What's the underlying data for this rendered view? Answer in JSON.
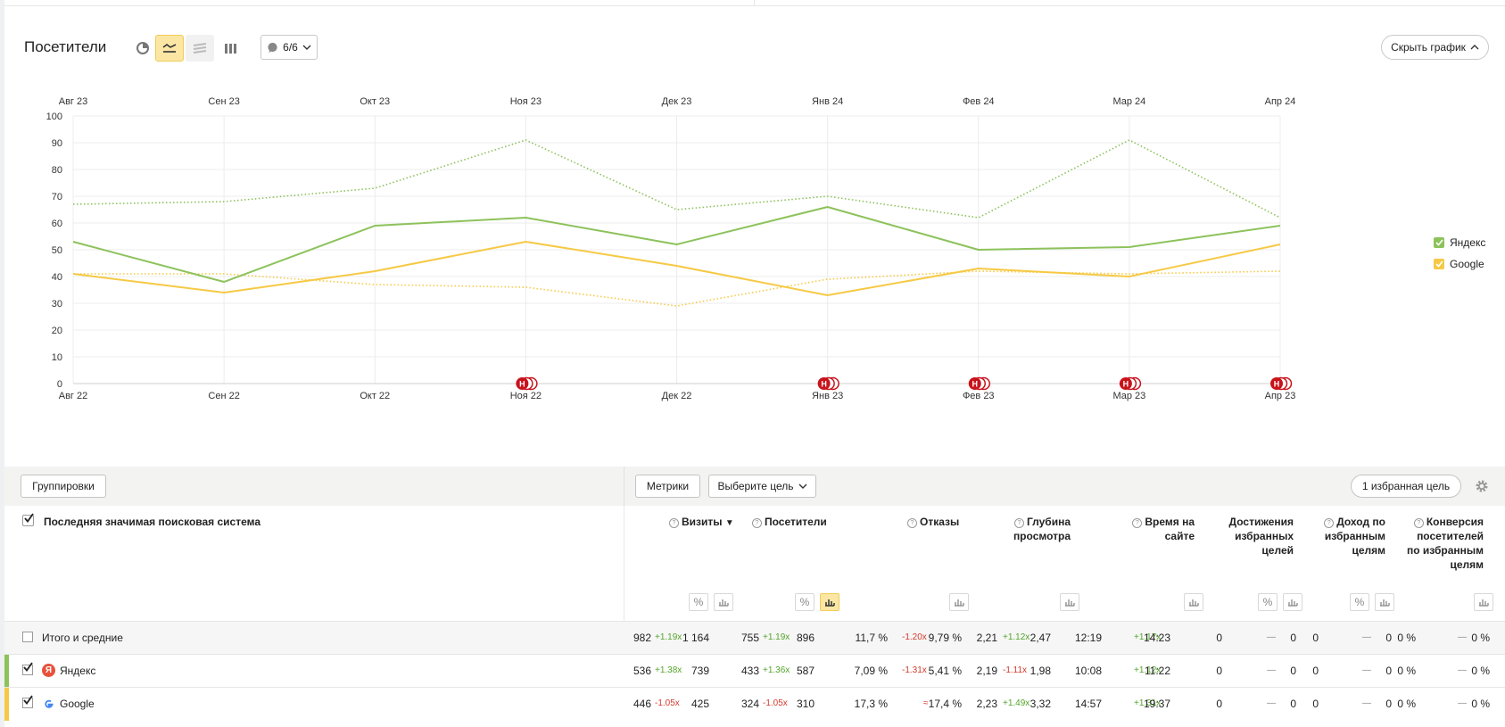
{
  "header": {
    "title": "Посетители",
    "annotations_label": "6/6",
    "hide_chart_label": "Скрыть график"
  },
  "colors": {
    "yandex": "#8dc25b",
    "google": "#f6c945",
    "accent": "#fbe6a4",
    "annotation": "#c8131b"
  },
  "chart_data": {
    "type": "line",
    "x_top": [
      "Авг 23",
      "Сен 23",
      "Окт 23",
      "Ноя 23",
      "Дек 23",
      "Янв 24",
      "Фев 24",
      "Мар 24",
      "Апр 24"
    ],
    "x": [
      "Авг 22",
      "Сен 22",
      "Окт 22",
      "Ноя 22",
      "Дек 22",
      "Янв 23",
      "Фев 23",
      "Мар 23",
      "Апр 23"
    ],
    "yticks": [
      0,
      10,
      20,
      30,
      40,
      50,
      60,
      70,
      80,
      90,
      100
    ],
    "ylim": [
      0,
      100
    ],
    "series": [
      {
        "name": "Яндекс",
        "style": "solid",
        "color": "#8dc25b",
        "values": [
          53,
          38,
          59,
          62,
          52,
          66,
          50,
          51,
          59
        ]
      },
      {
        "name": "Google",
        "style": "solid",
        "color": "#f6c945",
        "values": [
          41,
          34,
          42,
          53,
          44,
          33,
          43,
          40,
          52
        ]
      },
      {
        "name": "Яндекс",
        "style": "dotted",
        "color": "#8dc25b",
        "values": [
          67,
          68,
          73,
          91,
          65,
          70,
          62,
          91,
          62
        ]
      },
      {
        "name": "Google",
        "style": "dotted",
        "color": "#f6c945",
        "values": [
          41,
          41,
          37,
          36,
          29,
          39,
          42,
          41,
          42
        ]
      }
    ],
    "annotations": [
      {
        "x_index": 3,
        "label": "Н"
      },
      {
        "x_index": 5,
        "label": "Н"
      },
      {
        "x_index": 6,
        "label": "Н"
      },
      {
        "x_index": 7,
        "label": "Н"
      },
      {
        "x_index": 8,
        "label": "Н"
      }
    ],
    "legend": [
      "Яндекс",
      "Google"
    ],
    "legend_position": "right",
    "grid": true
  },
  "toolbar": {
    "groupings_label": "Группировки",
    "metrics_label": "Метрики",
    "goal_select_label": "Выберите цель",
    "favorite_goal_label": "1 избранная цель"
  },
  "table": {
    "dimension_header": "Последняя значимая поисковая система",
    "columns": [
      {
        "key": "visits",
        "label": "Визиты",
        "sort": "▼"
      },
      {
        "key": "visitors",
        "label": "Посетители"
      },
      {
        "key": "bounce",
        "label": "Отказы"
      },
      {
        "key": "depth",
        "label": "Глубина просмотра"
      },
      {
        "key": "time",
        "label": "Время на сайте"
      },
      {
        "key": "goals",
        "label": "Достижения избранных целей"
      },
      {
        "key": "income",
        "label": "Доход по избранным целям"
      },
      {
        "key": "conversion",
        "label": "Конверсия посетителей по избранным целям"
      }
    ],
    "rows": [
      {
        "name": "Итого и средние",
        "visits": [
          "982",
          "+1.19x",
          "1 164"
        ],
        "visitors": [
          "755",
          "+1.19x",
          "896"
        ],
        "bounce": [
          "11,7 %",
          "-1.20x",
          "9,79 %"
        ],
        "depth": [
          "2,21",
          "+1.12x",
          "2,47"
        ],
        "time": [
          "12:19",
          "+1.17x",
          "14:23"
        ],
        "goals": [
          "0",
          "—",
          "0"
        ],
        "income": [
          "0",
          "—",
          "0"
        ],
        "conversion": [
          "0 %",
          "—",
          "0 %"
        ]
      },
      {
        "name": "Яндекс",
        "visits": [
          "536",
          "+1.38x",
          "739"
        ],
        "visitors": [
          "433",
          "+1.36x",
          "587"
        ],
        "bounce": [
          "7,09 %",
          "-1.31x",
          "5,41 %"
        ],
        "depth": [
          "2,19",
          "-1.11x",
          "1,98"
        ],
        "time": [
          "10:08",
          "+1.12x",
          "11:22"
        ],
        "goals": [
          "0",
          "—",
          "0"
        ],
        "income": [
          "0",
          "—",
          "0"
        ],
        "conversion": [
          "0 %",
          "—",
          "0 %"
        ]
      },
      {
        "name": "Google",
        "visits": [
          "446",
          "-1.05x",
          "425"
        ],
        "visitors": [
          "324",
          "-1.05x",
          "310"
        ],
        "bounce": [
          "17,3 %",
          "≈",
          "17,4 %"
        ],
        "depth": [
          "2,23",
          "+1.49x",
          "3,32"
        ],
        "time": [
          "14:57",
          "+1.31x",
          "19:37"
        ],
        "goals": [
          "0",
          "—",
          "0"
        ],
        "income": [
          "0",
          "—",
          "0"
        ],
        "conversion": [
          "0 %",
          "—",
          "0 %"
        ]
      }
    ]
  }
}
